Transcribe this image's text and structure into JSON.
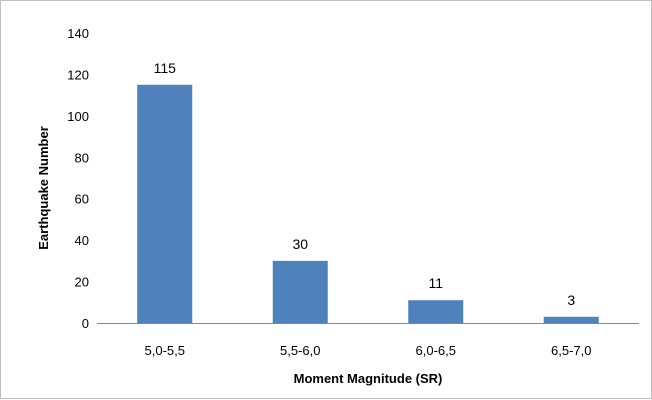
{
  "chart_data": {
    "type": "bar",
    "title": "",
    "xlabel": "Moment Magnitude (SR)",
    "ylabel": "Earthquake Number",
    "categories": [
      "5,0-5,5",
      "5,5-6,0",
      "6,0-6,5",
      "6,5-7,0"
    ],
    "values": [
      115,
      30,
      11,
      3
    ],
    "data_labels": [
      "115",
      "30",
      "11",
      "3"
    ],
    "ylim": [
      0,
      140
    ],
    "yticks": [
      0,
      20,
      40,
      60,
      80,
      100,
      120,
      140
    ],
    "grid": false,
    "legend": "none",
    "bar_color": "#4f81bd"
  }
}
